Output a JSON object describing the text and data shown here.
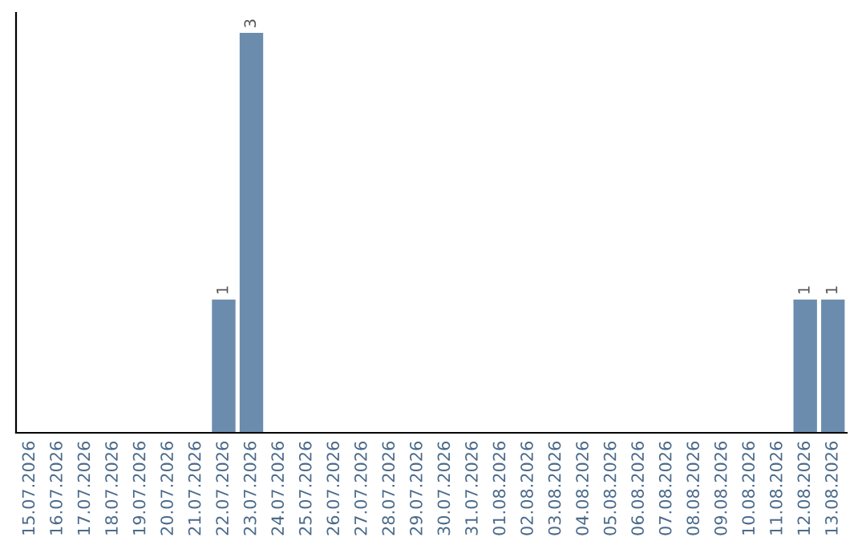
{
  "chart_data": {
    "type": "bar",
    "categories": [
      "15.07.2026",
      "16.07.2026",
      "17.07.2026",
      "18.07.2026",
      "19.07.2026",
      "20.07.2026",
      "21.07.2026",
      "22.07.2026",
      "23.07.2026",
      "24.07.2026",
      "25.07.2026",
      "26.07.2026",
      "27.07.2026",
      "28.07.2026",
      "29.07.2026",
      "30.07.2026",
      "31.07.2026",
      "01.08.2026",
      "02.08.2026",
      "03.08.2026",
      "04.08.2026",
      "05.08.2026",
      "06.08.2026",
      "07.08.2026",
      "08.08.2026",
      "09.08.2026",
      "10.08.2026",
      "11.08.2026",
      "12.08.2026",
      "13.08.2026"
    ],
    "values": [
      0,
      0,
      0,
      0,
      0,
      0,
      0,
      1,
      3,
      0,
      0,
      0,
      0,
      0,
      0,
      0,
      0,
      0,
      0,
      0,
      0,
      0,
      0,
      0,
      0,
      0,
      0,
      0,
      1,
      1
    ],
    "color": "#6b8cad",
    "value_labels": [
      null,
      null,
      null,
      null,
      null,
      null,
      null,
      "1",
      "3",
      null,
      null,
      null,
      null,
      null,
      null,
      null,
      null,
      null,
      null,
      null,
      null,
      null,
      null,
      null,
      null,
      null,
      null,
      null,
      "1",
      "1"
    ],
    "tick_labels": "x",
    "grid": false,
    "legend": false
  }
}
